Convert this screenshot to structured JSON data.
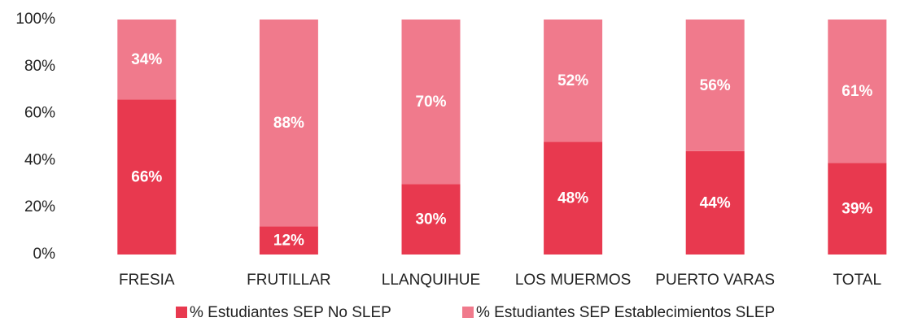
{
  "chart_data": {
    "type": "stacked_bar",
    "categories": [
      "FRESIA",
      "FRUTILLAR",
      "LLANQUIHUE",
      "LOS MUERMOS",
      "PUERTO VARAS",
      "TOTAL"
    ],
    "series": [
      {
        "name": "% Estudiantes SEP No SLEP",
        "color": "#e8394f",
        "values": [
          66,
          12,
          30,
          48,
          44,
          39
        ],
        "value_labels": [
          "66%",
          "12%",
          "30%",
          "48%",
          "44%",
          "39%"
        ]
      },
      {
        "name": "% Estudiantes SEP Establecimientos SLEP",
        "color": "#f07a8c",
        "values": [
          34,
          88,
          70,
          52,
          56,
          61
        ],
        "value_labels": [
          "34%",
          "88%",
          "70%",
          "52%",
          "56%",
          "61%"
        ]
      }
    ],
    "ylim": [
      0,
      100
    ],
    "yticks": [
      {
        "value": 0,
        "label": "0%"
      },
      {
        "value": 20,
        "label": "20%"
      },
      {
        "value": 40,
        "label": "40%"
      },
      {
        "value": 60,
        "label": "60%"
      },
      {
        "value": 80,
        "label": "80%"
      },
      {
        "value": 100,
        "label": "100%"
      }
    ],
    "grid": false,
    "legend": "bottom"
  }
}
